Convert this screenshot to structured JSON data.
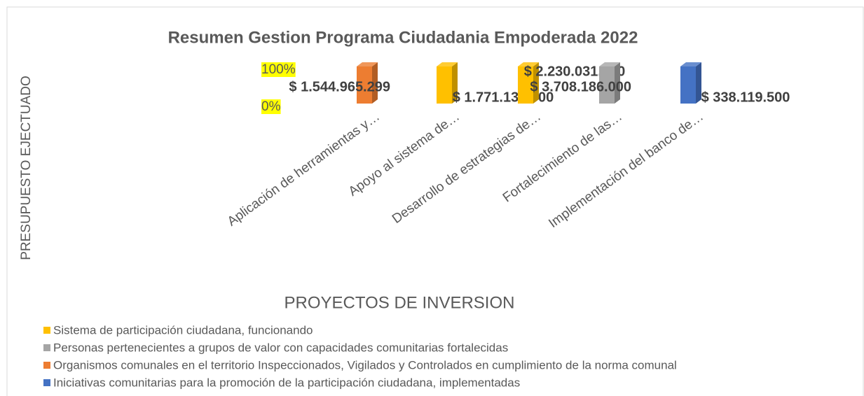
{
  "chart_data": {
    "type": "bar",
    "stacking": "percent",
    "title": "Resumen Gestion Programa Ciudadania Empoderada 2022",
    "y_axis_label": "PRESUPUESTO EJECTUADO",
    "x_axis_label": "PROYECTOS DE INVERSION",
    "categories": [
      "Aplicación de herramientas y…",
      "Apoyo al sistema de…",
      "Desarrollo de estrategias de…",
      "Fortalecimiento de las…",
      "Implementación del banco de…"
    ],
    "series": [
      {
        "name": "Sistema de participación ciudadana, funcionando",
        "color": "#ffc000",
        "values": [
          null,
          1771137500,
          2230031700,
          null,
          null
        ],
        "value_labels": [
          null,
          "$ 1.771.137.500",
          "$ 2.230.031.700",
          null,
          null
        ]
      },
      {
        "name": "Personas pertenecientes a grupos de valor con capacidades comunitarias fortalecidas",
        "color": "#a5a5a5",
        "values": [
          null,
          null,
          null,
          3708186000,
          null
        ],
        "value_labels": [
          null,
          null,
          null,
          "$ 3.708.186.000",
          null
        ]
      },
      {
        "name": "Organismos comunales en el territorio Inspeccionados, Vigilados y Controlados en cumplimiento de la norma comunal",
        "color": "#ed7d31",
        "values": [
          1544965299,
          null,
          null,
          null,
          null
        ],
        "value_labels": [
          "$ 1.544.965.299",
          null,
          null,
          null,
          null
        ]
      },
      {
        "name": "Iniciativas comunitarias para la promoción de la participación ciudadana, implementadas",
        "color": "#4472c4",
        "values": [
          null,
          null,
          null,
          null,
          338119500
        ],
        "value_labels": [
          null,
          null,
          null,
          null,
          "$ 338.119.500"
        ]
      }
    ],
    "ylim": [
      0,
      100
    ],
    "yticks": [
      {
        "value": 0,
        "label": "0%"
      },
      {
        "value": 100,
        "label": "100%"
      }
    ],
    "legend": "bottom"
  }
}
